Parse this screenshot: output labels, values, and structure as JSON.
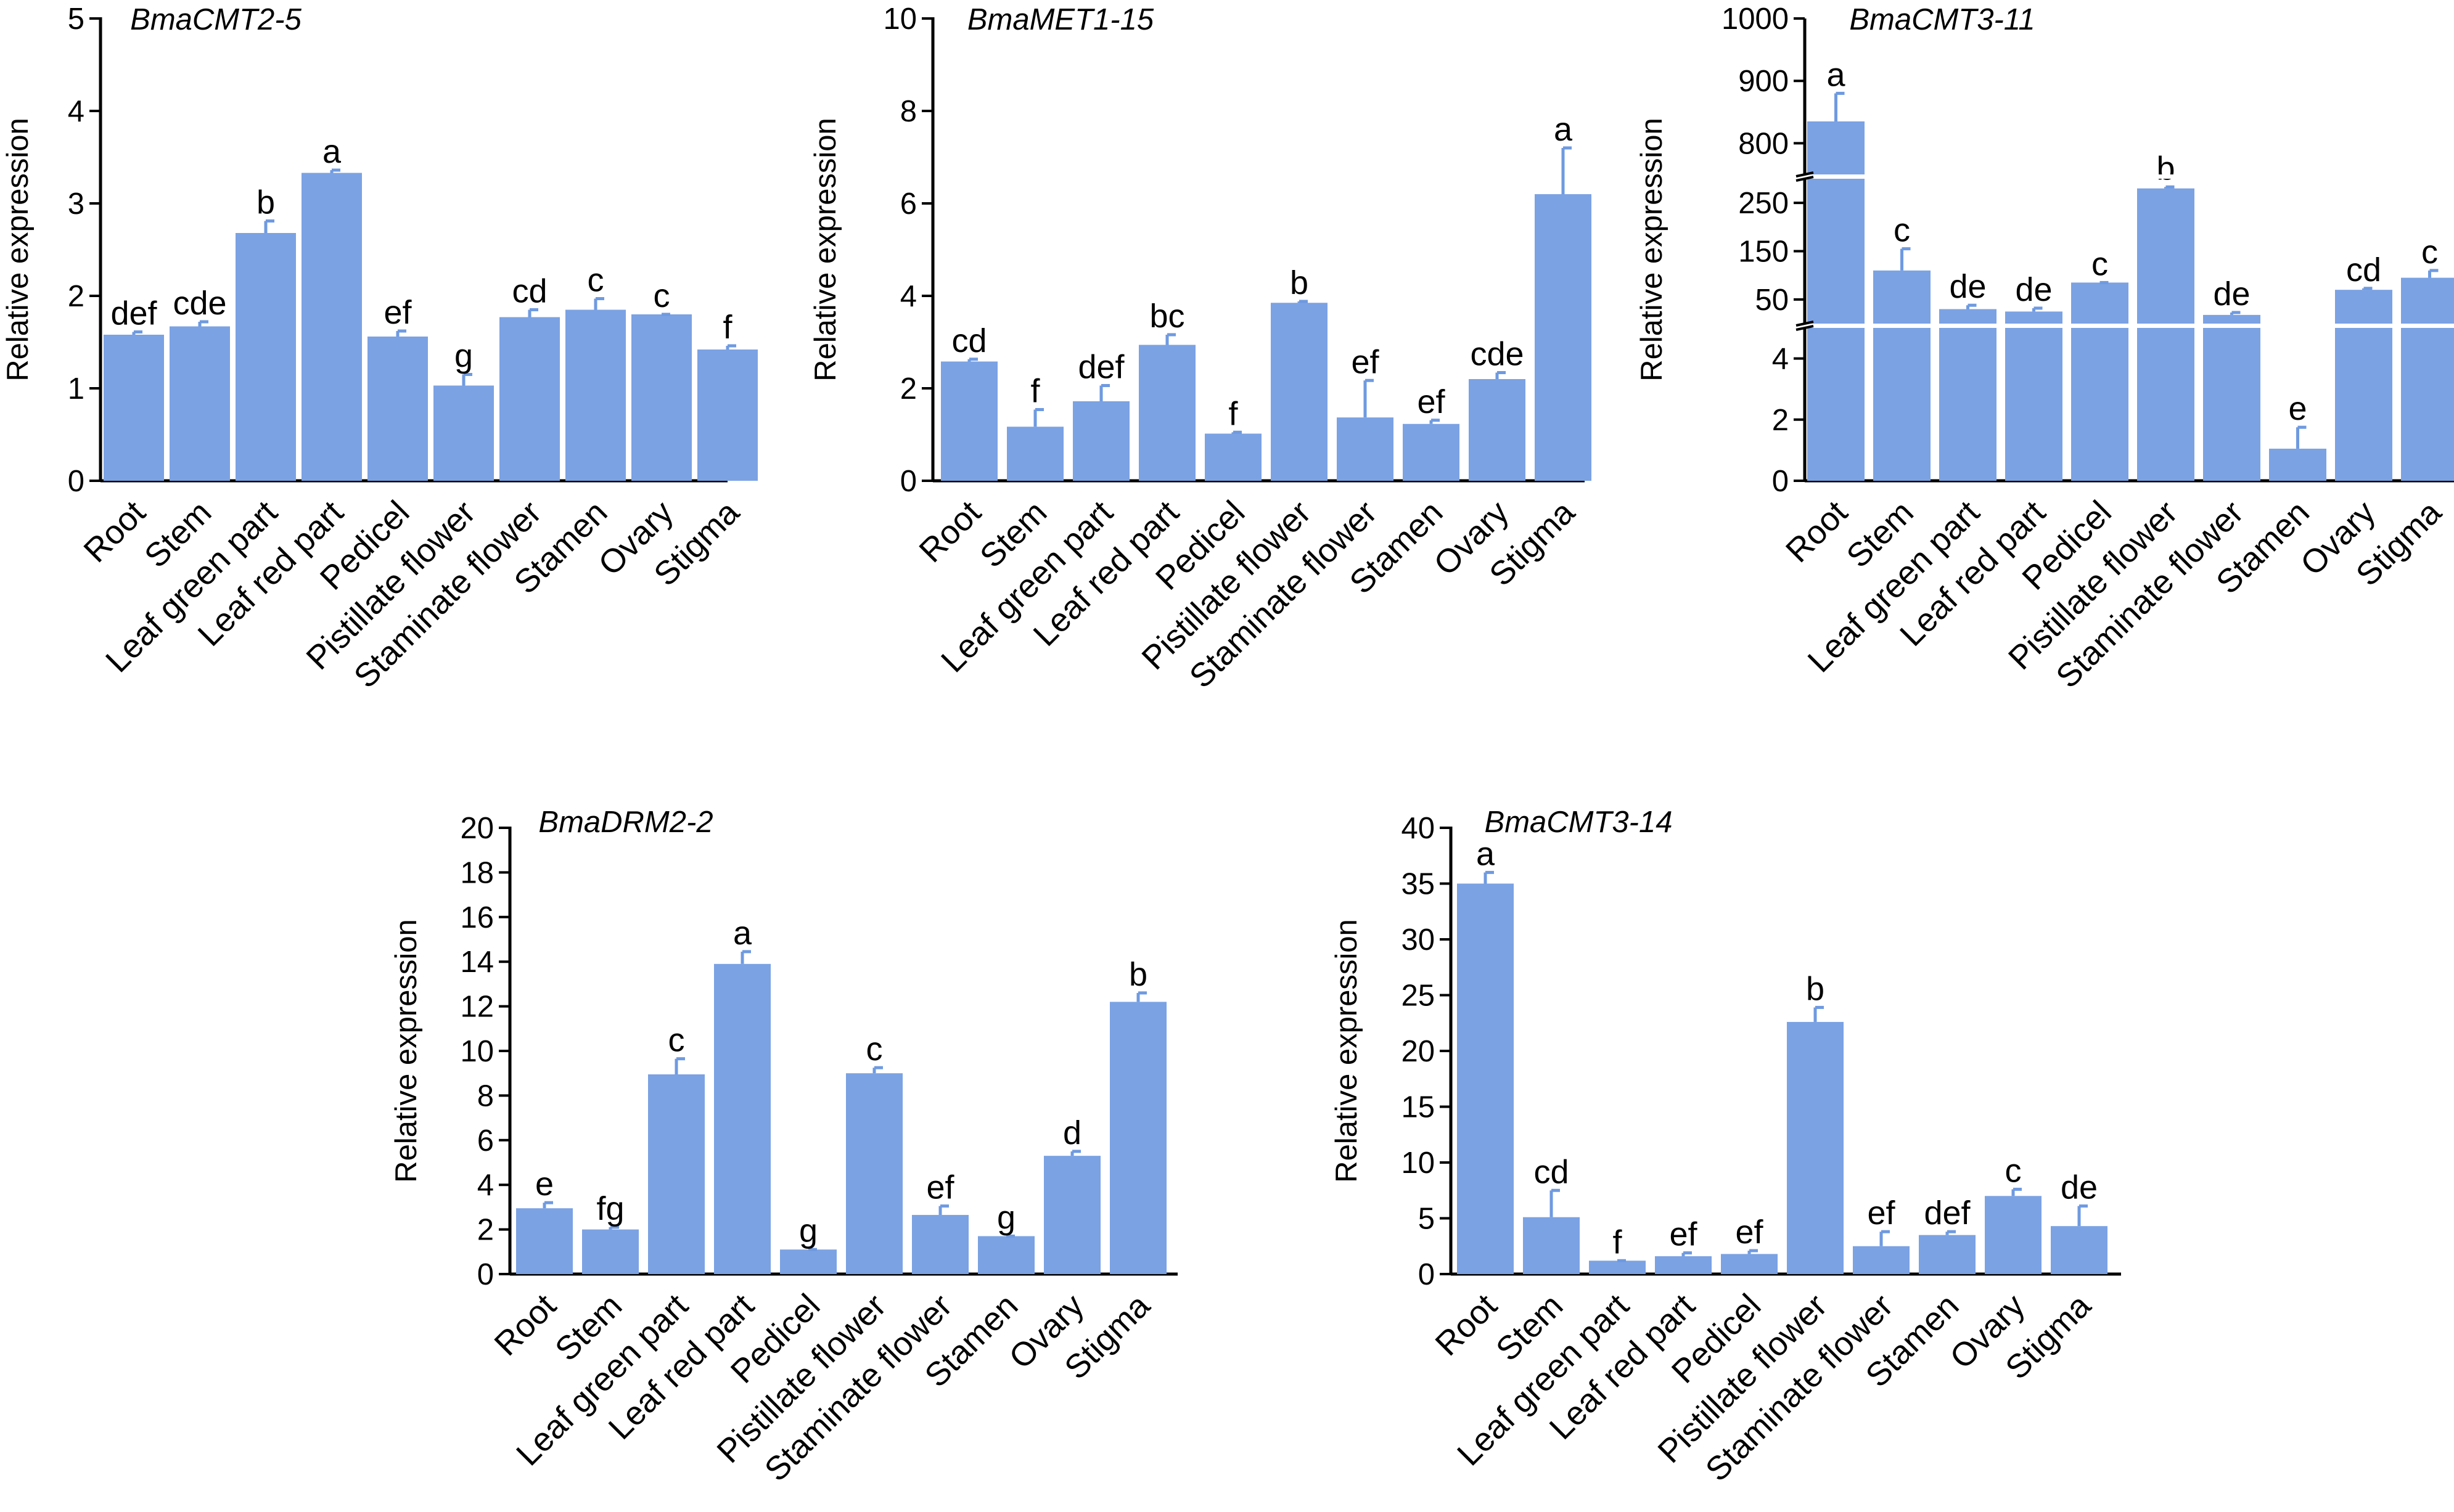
{
  "figure": {
    "colors": {
      "bar": "#7ba2e3",
      "error_bar": "#6f9ae0",
      "axis": "#000000",
      "background": "#ffffff"
    }
  },
  "chart_data": [
    {
      "type": "bar",
      "title": "BmaCMT2-5",
      "ylabel": "Relative expression",
      "ylim": [
        0,
        5
      ],
      "yticks": [
        "0",
        "1",
        "2",
        "3",
        "4",
        "5"
      ],
      "categories": [
        "Root",
        "Stem",
        "Leaf green part",
        "Leaf red part",
        "Pedicel",
        "Pistillate flower",
        "Staminate flower",
        "Stamen",
        "Ovary",
        "Stigma"
      ],
      "values": [
        1.58,
        1.67,
        2.68,
        3.33,
        1.56,
        1.03,
        1.77,
        1.85,
        1.8,
        1.42
      ],
      "errors": [
        0.03,
        0.05,
        0.13,
        0.03,
        0.06,
        0.12,
        0.08,
        0.12,
        0.0,
        0.04
      ],
      "significance": [
        "def",
        "cde",
        "b",
        "a",
        "ef",
        "g",
        "cd",
        "c",
        "c",
        "f"
      ]
    },
    {
      "type": "bar",
      "title": "BmaMET1-15",
      "ylabel": "Relative expression",
      "ylim": [
        0,
        10
      ],
      "yticks": [
        "0",
        "2",
        "4",
        "6",
        "8",
        "10"
      ],
      "categories": [
        "Root",
        "Stem",
        "Leaf green part",
        "Leaf red part",
        "Pedicel",
        "Pistillate flower",
        "Staminate flower",
        "Stamen",
        "Ovary",
        "Stigma"
      ],
      "values": [
        2.58,
        1.17,
        1.72,
        2.94,
        1.02,
        3.85,
        1.37,
        1.23,
        2.2,
        6.2
      ],
      "errors": [
        0.05,
        0.37,
        0.34,
        0.22,
        0.03,
        0.03,
        0.8,
        0.08,
        0.14,
        1.0
      ],
      "significance": [
        "cd",
        "f",
        "def",
        "bc",
        "f",
        "b",
        "ef",
        "ef",
        "cde",
        "a"
      ]
    },
    {
      "type": "bar",
      "title": "BmaCMT3-11",
      "ylabel": "Relative expression",
      "broken_axis": true,
      "segments": [
        {
          "range": [
            0,
            5
          ],
          "ticks": [
            "0",
            "2",
            "4"
          ]
        },
        {
          "range": [
            0,
            300
          ],
          "ticks": [
            "50",
            "150",
            "250"
          ]
        },
        {
          "range": [
            750,
            1000
          ],
          "ticks": [
            "800",
            "900",
            "1000"
          ]
        }
      ],
      "categories": [
        "Root",
        "Stem",
        "Leaf green part",
        "Leaf red part",
        "Pedicel",
        "Pistillate flower",
        "Staminate flower",
        "Stamen",
        "Ovary",
        "Stigma"
      ],
      "values": [
        835,
        110,
        30,
        25,
        85,
        280,
        18,
        1.05,
        70,
        95
      ],
      "errors": [
        45,
        45,
        8,
        7,
        0,
        3,
        5,
        0.7,
        3,
        15
      ],
      "significance": [
        "a",
        "c",
        "de",
        "de",
        "c",
        "b",
        "de",
        "e",
        "cd",
        "c"
      ]
    },
    {
      "type": "bar",
      "title": "BmaDRM2-2",
      "ylabel": "Relative expression",
      "ylim": [
        0,
        20
      ],
      "yticks": [
        "0",
        "2",
        "4",
        "6",
        "8",
        "10",
        "12",
        "14",
        "16",
        "18",
        "20"
      ],
      "categories": [
        "Root",
        "Stem",
        "Leaf green part",
        "Leaf red part",
        "Pedicel",
        "Pistillate flower",
        "Staminate flower",
        "Stamen",
        "Ovary",
        "Stigma"
      ],
      "values": [
        2.95,
        2.0,
        8.95,
        13.9,
        1.1,
        9.0,
        2.65,
        1.7,
        5.3,
        12.2
      ],
      "errors": [
        0.25,
        0.1,
        0.7,
        0.55,
        0.0,
        0.25,
        0.4,
        0.0,
        0.2,
        0.4
      ],
      "significance": [
        "e",
        "fg",
        "c",
        "a",
        "g",
        "c",
        "ef",
        "g",
        "d",
        "b"
      ]
    },
    {
      "type": "bar",
      "title": "BmaCMT3-14",
      "ylabel": "Relative expression",
      "ylim": [
        0,
        40
      ],
      "yticks": [
        "0",
        "5",
        "10",
        "15",
        "20",
        "25",
        "30",
        "35",
        "40"
      ],
      "categories": [
        "Root",
        "Stem",
        "Leaf green part",
        "Leaf red part",
        "Pedicel",
        "Pistillate flower",
        "Staminate flower",
        "Stamen",
        "Ovary",
        "Stigma"
      ],
      "values": [
        35.0,
        5.1,
        1.2,
        1.6,
        1.8,
        22.6,
        2.5,
        3.5,
        7.0,
        4.3
      ],
      "errors": [
        1.0,
        2.4,
        0.0,
        0.3,
        0.3,
        1.3,
        1.3,
        0.3,
        0.6,
        1.8
      ],
      "significance": [
        "a",
        "cd",
        "f",
        "ef",
        "ef",
        "b",
        "ef",
        "def",
        "c",
        "de"
      ]
    }
  ]
}
